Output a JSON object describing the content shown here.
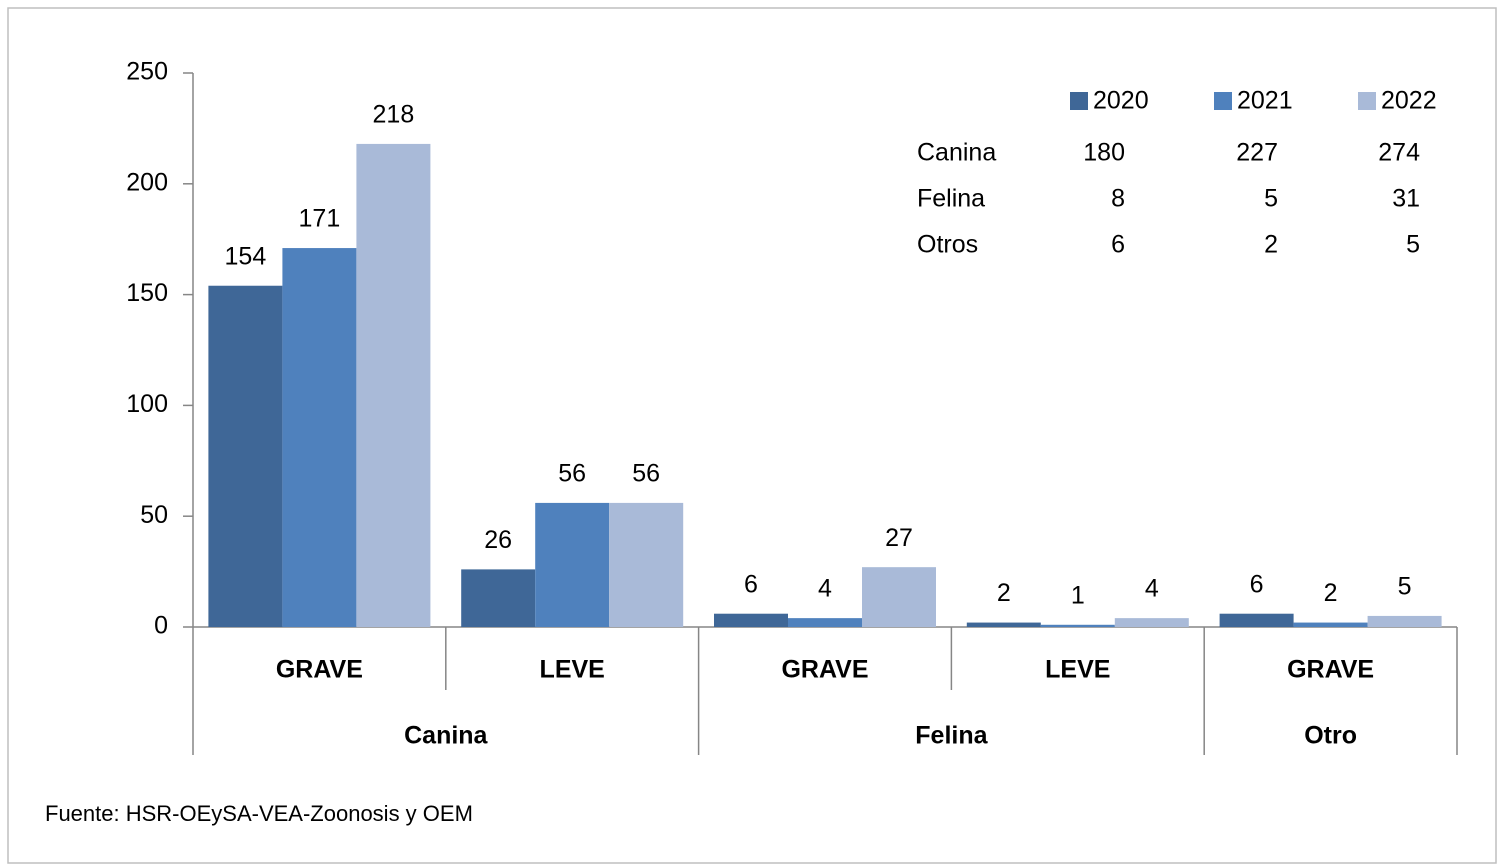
{
  "chart_data": {
    "type": "bar",
    "groups": [
      {
        "name": "Canina",
        "categories": [
          "GRAVE",
          "LEVE"
        ]
      },
      {
        "name": "Felina",
        "categories": [
          "GRAVE",
          "LEVE"
        ]
      },
      {
        "name": "Otro",
        "categories": [
          "GRAVE"
        ]
      }
    ],
    "series": [
      {
        "name": "2020",
        "color": "#3f6797",
        "values": [
          154,
          26,
          6,
          2,
          6
        ]
      },
      {
        "name": "2021",
        "color": "#4f81bd",
        "values": [
          171,
          56,
          4,
          1,
          2
        ]
      },
      {
        "name": "2022",
        "color": "#a9bad8",
        "values": [
          218,
          56,
          27,
          4,
          5
        ]
      }
    ],
    "ylim": [
      0,
      250
    ],
    "yticks": [
      0,
      50,
      100,
      150,
      200,
      250
    ],
    "grid": false,
    "legend": "top-right",
    "table": {
      "rows": [
        {
          "name": "Canina",
          "values": [
            180,
            227,
            274
          ]
        },
        {
          "name": "Felina",
          "values": [
            8,
            5,
            31
          ]
        },
        {
          "name": "Otros",
          "values": [
            6,
            2,
            5
          ]
        }
      ]
    },
    "source": "Fuente: HSR-OEySA-VEA-Zoonosis y OEM"
  }
}
